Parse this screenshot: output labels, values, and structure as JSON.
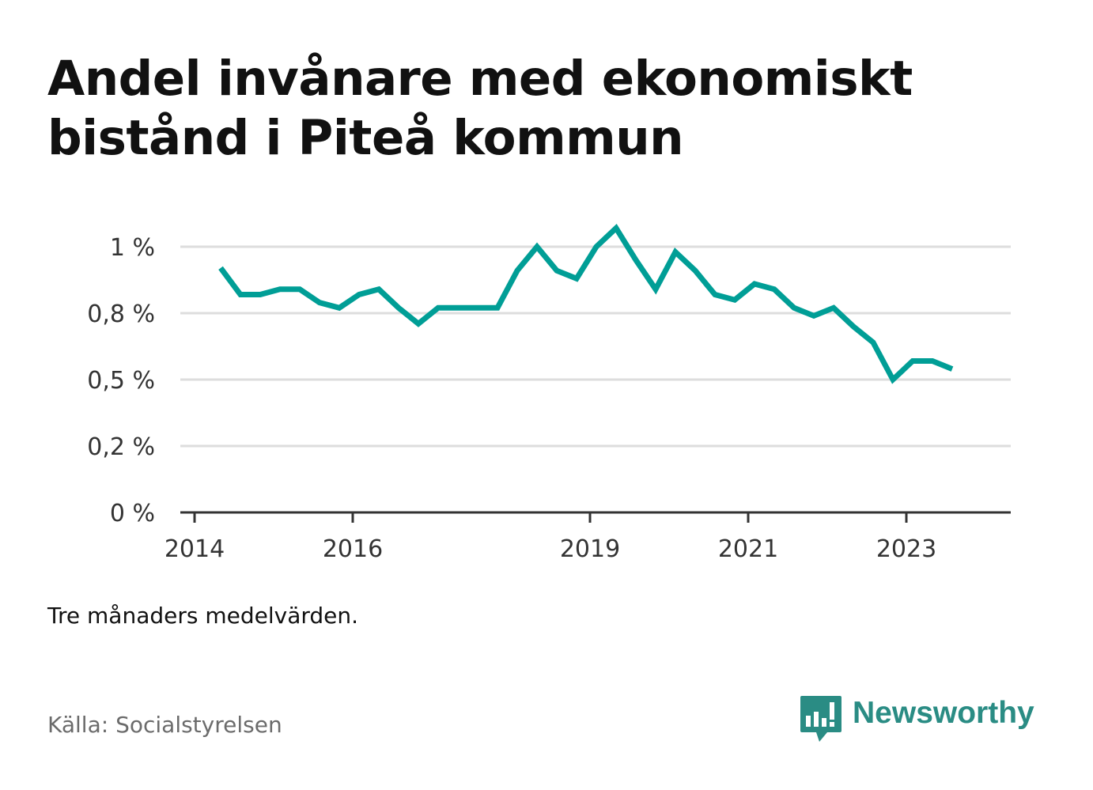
{
  "header": {
    "title": "Andel invånare med ekonomiskt bistånd i Piteå kommun"
  },
  "footer": {
    "note": "Tre månaders medelvärden.",
    "source": "Källa: Socialstyrelsen",
    "brand": "Newsworthy"
  },
  "colors": {
    "line": "#009e96",
    "grid": "#dddddd",
    "axis": "#333333",
    "brand": "#2a8c84",
    "source_text": "#6b6b6b"
  },
  "icons": {
    "brand_logo": "bar-chart-speech-bubble-icon"
  },
  "chart_data": {
    "type": "line",
    "title": "Andel invånare med ekonomiskt bistånd i Piteå kommun",
    "xlabel": "",
    "ylabel": "",
    "y_unit": "%",
    "ylim": [
      0,
      1.05
    ],
    "y_ticks": [
      {
        "value": 0,
        "label": "0 %"
      },
      {
        "value": 0.25,
        "label": "0,2 %"
      },
      {
        "value": 0.5,
        "label": "0,5 %"
      },
      {
        "value": 0.75,
        "label": "0,8 %"
      },
      {
        "value": 1.0,
        "label": "1 %"
      }
    ],
    "x_ticks": [
      {
        "value": 2014.0,
        "label": "2014"
      },
      {
        "value": 2016.0,
        "label": "2016"
      },
      {
        "value": 2019.0,
        "label": "2019"
      },
      {
        "value": 2021.0,
        "label": "2021"
      },
      {
        "value": 2023.0,
        "label": "2023"
      }
    ],
    "xlim": [
      2013.95,
      2024.1
    ],
    "grid": true,
    "legend": "none",
    "series": [
      {
        "x": [
          2014.33,
          2014.58,
          2014.83,
          2015.08,
          2015.33,
          2015.58,
          2015.83,
          2016.08,
          2016.33,
          2016.58,
          2016.83,
          2017.08,
          2017.33,
          2017.58,
          2017.83,
          2018.08,
          2018.33,
          2018.58,
          2018.83,
          2019.08,
          2019.33,
          2019.58,
          2019.83,
          2020.08,
          2020.33,
          2020.58,
          2020.83,
          2021.08,
          2021.33,
          2021.58,
          2021.83,
          2022.08,
          2022.33,
          2022.58,
          2022.83,
          2023.08,
          2023.33,
          2023.58
        ],
        "values": [
          0.92,
          0.82,
          0.82,
          0.84,
          0.84,
          0.79,
          0.77,
          0.82,
          0.84,
          0.77,
          0.71,
          0.77,
          0.77,
          0.77,
          0.77,
          0.91,
          1.0,
          0.91,
          0.88,
          1.0,
          1.07,
          0.95,
          0.84,
          0.98,
          0.91,
          0.82,
          0.8,
          0.86,
          0.84,
          0.77,
          0.74,
          0.77,
          0.7,
          0.64,
          0.5,
          0.57,
          0.57,
          0.54
        ]
      }
    ]
  }
}
